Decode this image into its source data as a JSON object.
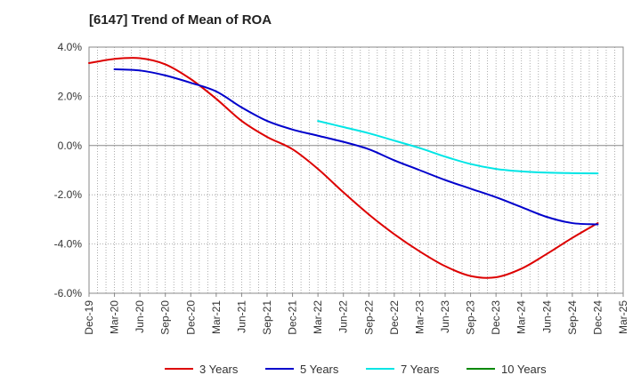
{
  "chart_data": {
    "type": "line",
    "title": "[6147]  Trend of Mean of ROA",
    "xlabel": "",
    "ylabel": "",
    "ylim": [
      -6.0,
      4.0
    ],
    "grid": true,
    "legend_position": "bottom",
    "x_ticks": [
      "Dec-19",
      "Mar-20",
      "Jun-20",
      "Sep-20",
      "Dec-20",
      "Mar-21",
      "Jun-21",
      "Sep-21",
      "Dec-21",
      "Mar-22",
      "Jun-22",
      "Sep-22",
      "Dec-22",
      "Mar-23",
      "Jun-23",
      "Sep-23",
      "Dec-23",
      "Mar-24",
      "Jun-24",
      "Sep-24",
      "Dec-24",
      "Mar-25"
    ],
    "y_ticks": [
      "4.0%",
      "2.0%",
      "0.0%",
      "-2.0%",
      "-4.0%",
      "-6.0%"
    ],
    "y_tick_values": [
      4.0,
      2.0,
      0.0,
      -2.0,
      -4.0,
      -6.0
    ],
    "series": [
      {
        "name": "3 Years",
        "color": "#dd0000",
        "values": [
          3.35,
          3.52,
          3.55,
          3.3,
          2.7,
          1.9,
          1.0,
          0.35,
          -0.15,
          -0.95,
          -1.9,
          -2.8,
          -3.6,
          -4.3,
          -4.9,
          -5.3,
          -5.35,
          -5.0,
          -4.4,
          -3.75,
          -3.15
        ]
      },
      {
        "name": "5 Years",
        "color": "#0000cc",
        "values": [
          null,
          3.1,
          3.05,
          2.85,
          2.55,
          2.2,
          1.55,
          1.0,
          0.65,
          0.4,
          0.15,
          -0.15,
          -0.6,
          -1.0,
          -1.4,
          -1.75,
          -2.1,
          -2.5,
          -2.9,
          -3.15,
          -3.2
        ]
      },
      {
        "name": "7 Years",
        "color": "#00e5e5",
        "values": [
          null,
          null,
          null,
          null,
          null,
          null,
          null,
          null,
          null,
          1.0,
          0.75,
          0.5,
          0.2,
          -0.1,
          -0.45,
          -0.75,
          -0.95,
          -1.05,
          -1.1,
          -1.12,
          -1.13
        ]
      },
      {
        "name": "10 Years",
        "color": "#008800",
        "values": [
          null,
          null,
          null,
          null,
          null,
          null,
          null,
          null,
          null,
          null,
          null,
          null,
          null,
          null,
          null,
          null,
          null,
          null,
          null,
          null,
          null
        ]
      }
    ]
  }
}
